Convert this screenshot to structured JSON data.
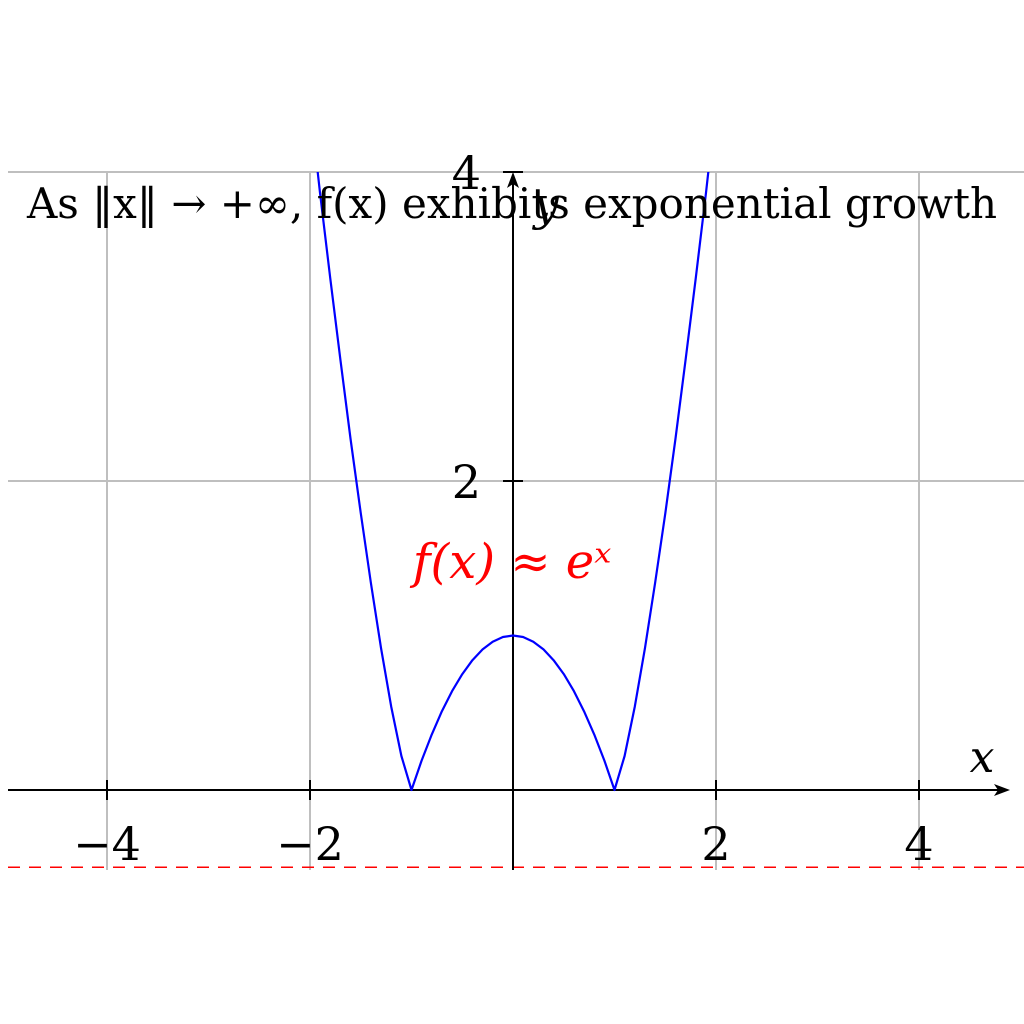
{
  "chart_data": {
    "type": "line",
    "xlabel": "x",
    "ylabel": "y",
    "xlim": [
      -5,
      5
    ],
    "ylim": [
      -0.5,
      4
    ],
    "grid": true,
    "xticks": [
      -4,
      -2,
      2,
      4
    ],
    "xtick_labels": [
      "−4",
      "−2",
      "2",
      "4"
    ],
    "yticks": [
      2,
      4
    ],
    "ytick_labels": [
      "2",
      "4"
    ],
    "annotation_top": "As ‖x‖ → +∞, f(x) exhibits exponential growth",
    "annotation_curve": "f(x) ≈ eˣ",
    "series": [
      {
        "color": "#0000ff",
        "x": [
          -1.95,
          -1.9,
          -1.8,
          -1.7,
          -1.6,
          -1.5,
          -1.4,
          -1.3,
          -1.2,
          -1.1,
          -1.0,
          -0.9,
          -0.8,
          -0.7,
          -0.6,
          -0.5,
          -0.4,
          -0.3,
          -0.2,
          -0.1,
          0.0,
          0.1,
          0.2,
          0.3,
          0.4,
          0.5,
          0.6,
          0.7,
          0.8,
          0.9,
          1.0,
          1.1,
          1.2,
          1.3,
          1.4,
          1.5,
          1.6,
          1.7,
          1.8,
          1.9,
          1.95
        ],
        "y": [
          4.15,
          3.86,
          3.31,
          2.78,
          2.27,
          1.79,
          1.34,
          0.92,
          0.54,
          0.22,
          0.0,
          0.19,
          0.36,
          0.51,
          0.64,
          0.75,
          0.84,
          0.91,
          0.96,
          0.99,
          1.0,
          0.99,
          0.96,
          0.91,
          0.84,
          0.75,
          0.64,
          0.51,
          0.36,
          0.19,
          0.0,
          0.22,
          0.54,
          0.92,
          1.34,
          1.79,
          2.27,
          2.78,
          3.31,
          3.86,
          4.15
        ]
      }
    ],
    "reference_line": {
      "y": -0.5,
      "style": "dashed",
      "color": "#ff0000"
    },
    "axis_color": "#000000",
    "grid_color": "#bfbfbf",
    "annotation_color": "#ff0000"
  }
}
